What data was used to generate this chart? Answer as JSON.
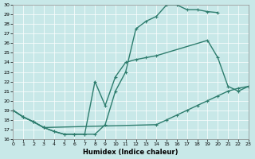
{
  "xlabel": "Humidex (Indice chaleur)",
  "xlim": [
    0,
    23
  ],
  "ylim": [
    16,
    30
  ],
  "xticks": [
    0,
    1,
    2,
    3,
    4,
    5,
    6,
    7,
    8,
    9,
    10,
    11,
    12,
    13,
    14,
    15,
    16,
    17,
    18,
    19,
    20,
    21,
    22,
    23
  ],
  "yticks": [
    16,
    17,
    18,
    19,
    20,
    21,
    22,
    23,
    24,
    25,
    26,
    27,
    28,
    29,
    30
  ],
  "background_color": "#c8e8e8",
  "line_color": "#2e7d6e",
  "line_width": 1.0,
  "marker": "+",
  "marker_size": 3,
  "line1_x": [
    0,
    1,
    2,
    3,
    4,
    5,
    6,
    7,
    8,
    9,
    10,
    11,
    12,
    13,
    14,
    15,
    16,
    17,
    18,
    19,
    20
  ],
  "line1_y": [
    19,
    18.3,
    17.8,
    17.2,
    16.8,
    16.5,
    16.5,
    16.5,
    16.5,
    17.5,
    21,
    23,
    27.5,
    28.3,
    28.8,
    30,
    30,
    29.5,
    29.5,
    29.3,
    29.2
  ],
  "line2_x": [
    0,
    1,
    2,
    3,
    4,
    5,
    6,
    7,
    8,
    9,
    10,
    11,
    12,
    13,
    14,
    19,
    20,
    21,
    22,
    23
  ],
  "line2_y": [
    19,
    18.3,
    17.8,
    17.2,
    16.8,
    16.5,
    16.5,
    16.5,
    22.0,
    19.5,
    22.5,
    24.0,
    24.3,
    24.5,
    24.7,
    26.3,
    24.5,
    21.5,
    21.0,
    21.5
  ],
  "line3_x": [
    0,
    1,
    2,
    3,
    14,
    15,
    16,
    17,
    18,
    19,
    20,
    21,
    22,
    23
  ],
  "line3_y": [
    19,
    18.3,
    17.8,
    17.2,
    17.5,
    18.0,
    18.5,
    19.0,
    19.5,
    20.0,
    20.5,
    21.0,
    21.3,
    21.5
  ]
}
